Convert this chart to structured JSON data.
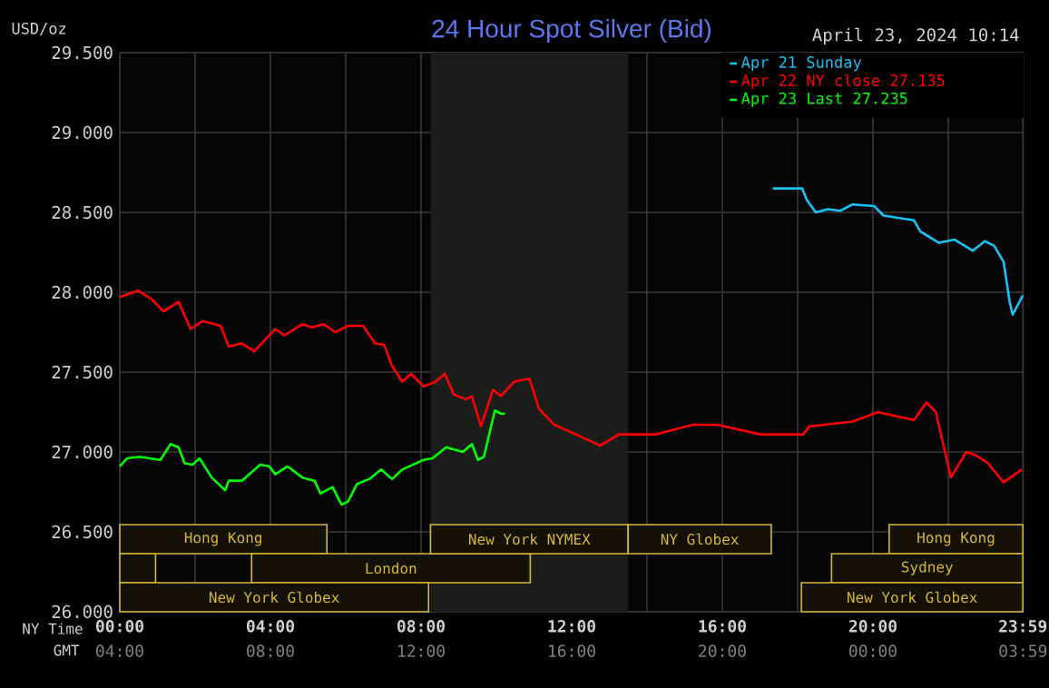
{
  "chart_data": {
    "type": "line",
    "title": "24 Hour Spot Silver (Bid)",
    "subtitle": "April 23, 2024 10:14",
    "ylabel": "USD/oz",
    "xlabel": "NY Time",
    "x2label": "GMT",
    "xlim": [
      0,
      24
    ],
    "ylim": [
      26.0,
      29.5
    ],
    "xticks": [
      {
        "value": 0,
        "label": "00:00"
      },
      {
        "value": 2,
        "label": null
      },
      {
        "value": 4,
        "label": "04:00"
      },
      {
        "value": 6,
        "label": null
      },
      {
        "value": 8,
        "label": "08:00"
      },
      {
        "value": 10,
        "label": null
      },
      {
        "value": 12,
        "label": "12:00"
      },
      {
        "value": 14,
        "label": null
      },
      {
        "value": 16,
        "label": "16:00"
      },
      {
        "value": 18,
        "label": null
      },
      {
        "value": 20,
        "label": "20:00"
      },
      {
        "value": 22,
        "label": null
      },
      {
        "value": 23.98,
        "label": "23:59"
      }
    ],
    "x2lim": [
      "2024-04-23T04:00",
      "2024-04-24T04:00"
    ],
    "x2ticks": [
      {
        "value": "2024-04-23T04:00",
        "label": "04:00"
      },
      {
        "value": "2024-04-23T08:00",
        "label": "08:00"
      },
      {
        "value": "2024-04-23T12:00",
        "label": "12:00"
      },
      {
        "value": "2024-04-23T16:00",
        "label": "16:00"
      },
      {
        "value": "2024-04-23T20:00",
        "label": "20:00"
      },
      {
        "value": "2024-04-24T00:00",
        "label": "00:00"
      },
      {
        "value": "2024-04-24T03:59",
        "label": "03:59"
      }
    ],
    "yticks": [
      {
        "value": 26.0,
        "label": "26.000"
      },
      {
        "value": 26.5,
        "label": "26.500"
      },
      {
        "value": 27.0,
        "label": "27.000"
      },
      {
        "value": 27.5,
        "label": "27.500"
      },
      {
        "value": 28.0,
        "label": "28.000"
      },
      {
        "value": 28.5,
        "label": "28.500"
      },
      {
        "value": 29.0,
        "label": "29.000"
      },
      {
        "value": 29.5,
        "label": "29.500"
      }
    ],
    "grid": true,
    "legend": "top right",
    "marker": "none",
    "bands": [
      {
        "axis": "x",
        "from": 8.25,
        "to": 13.5,
        "color": "#1b1d1b"
      },
      {
        "axis": "x",
        "from": 0,
        "to": 5.5,
        "label": "Hong Kong",
        "color": "#141208"
      },
      {
        "axis": "x",
        "from": 20.43,
        "to": 23.98,
        "label": "Hong Kong",
        "color": "#141208"
      },
      {
        "axis": "x",
        "from": 0,
        "to": 0.95,
        "label": null,
        "color": "#141208"
      },
      {
        "axis": "x",
        "from": 3.5,
        "to": 10.9,
        "label": "London",
        "color": "#141208"
      },
      {
        "axis": "x",
        "from": 18.9,
        "to": 23.98,
        "label": "Sydney",
        "color": "#141208"
      },
      {
        "axis": "x",
        "from": 0,
        "to": 8.2,
        "label": "New York Globex",
        "color": "#141208"
      },
      {
        "axis": "x",
        "from": 8.25,
        "to": 13.5,
        "label": "New York NYMEX",
        "color": "#141208"
      },
      {
        "axis": "x",
        "from": 13.5,
        "to": 17.3,
        "label": "NY Globex",
        "color": "#141208"
      },
      {
        "axis": "x",
        "from": 18.1,
        "to": 23.98,
        "label": "New York Globex",
        "color": "#141208"
      }
    ],
    "series": [
      {
        "name": "Apr 21 Sunday",
        "color": "#19c3f5",
        "x": [
          17.34,
          18.12,
          18.24,
          18.48,
          18.8,
          19.13,
          19.46,
          20.03,
          20.28,
          21.09,
          21.26,
          21.75,
          22.16,
          22.65,
          22.97,
          23.22,
          23.47,
          23.63,
          23.71,
          23.98
        ],
        "values": [
          28.65,
          28.65,
          28.58,
          28.5,
          28.52,
          28.51,
          28.55,
          28.54,
          28.48,
          28.45,
          28.38,
          28.31,
          28.33,
          28.26,
          28.32,
          28.29,
          28.19,
          27.94,
          27.86,
          27.98
        ]
      },
      {
        "name": "Apr 22 NY close 27.135",
        "color": "#ff0000",
        "x": [
          0,
          0.48,
          0.83,
          1.16,
          1.56,
          1.88,
          2.2,
          2.68,
          2.89,
          3.24,
          3.57,
          4.13,
          4.37,
          4.85,
          5.09,
          5.41,
          5.73,
          6.06,
          6.46,
          6.78,
          7.02,
          7.23,
          7.5,
          7.74,
          8.06,
          8.39,
          8.63,
          8.87,
          9.19,
          9.35,
          9.59,
          9.91,
          10.12,
          10.47,
          10.88,
          11.13,
          11.54,
          12.11,
          12.76,
          13.25,
          14.24,
          15.21,
          15.87,
          17.01,
          18.15,
          18.31,
          19.46,
          20.12,
          21.09,
          21.42,
          21.67,
          22.07,
          22.48,
          22.73,
          23.05,
          23.47,
          23.95
        ],
        "values": [
          27.97,
          28.01,
          27.96,
          27.88,
          27.94,
          27.77,
          27.82,
          27.79,
          27.66,
          27.68,
          27.63,
          27.77,
          27.73,
          27.8,
          27.78,
          27.8,
          27.75,
          27.79,
          27.79,
          27.68,
          27.67,
          27.54,
          27.44,
          27.49,
          27.41,
          27.44,
          27.49,
          27.36,
          27.33,
          27.35,
          27.16,
          27.39,
          27.35,
          27.44,
          27.46,
          27.27,
          27.17,
          27.11,
          27.04,
          27.11,
          27.11,
          27.17,
          27.17,
          27.11,
          27.11,
          27.16,
          27.19,
          27.25,
          27.2,
          27.31,
          27.25,
          26.84,
          27.0,
          26.98,
          26.93,
          26.81,
          26.89
        ]
      },
      {
        "name": "Apr 23 Last 27.235",
        "color": "#00ff00",
        "x": [
          0,
          0.19,
          0.51,
          1.08,
          1.35,
          1.56,
          1.72,
          1.93,
          2.12,
          2.44,
          2.8,
          2.89,
          3.24,
          3.73,
          3.97,
          4.13,
          4.45,
          4.85,
          5.17,
          5.33,
          5.65,
          5.89,
          6.06,
          6.3,
          6.62,
          6.94,
          7.23,
          7.5,
          8.06,
          8.3,
          8.67,
          9.11,
          9.35,
          9.51,
          9.67,
          9.8,
          9.96,
          10.12,
          10.23
        ],
        "values": [
          26.91,
          26.96,
          26.97,
          26.95,
          27.05,
          27.03,
          26.93,
          26.92,
          26.96,
          26.84,
          26.76,
          26.82,
          26.82,
          26.92,
          26.91,
          26.86,
          26.91,
          26.84,
          26.82,
          26.74,
          26.78,
          26.67,
          26.69,
          26.8,
          26.83,
          26.89,
          26.83,
          26.89,
          26.95,
          26.96,
          27.03,
          27.0,
          27.05,
          26.95,
          26.97,
          27.1,
          27.26,
          27.24,
          27.24
        ]
      }
    ]
  }
}
